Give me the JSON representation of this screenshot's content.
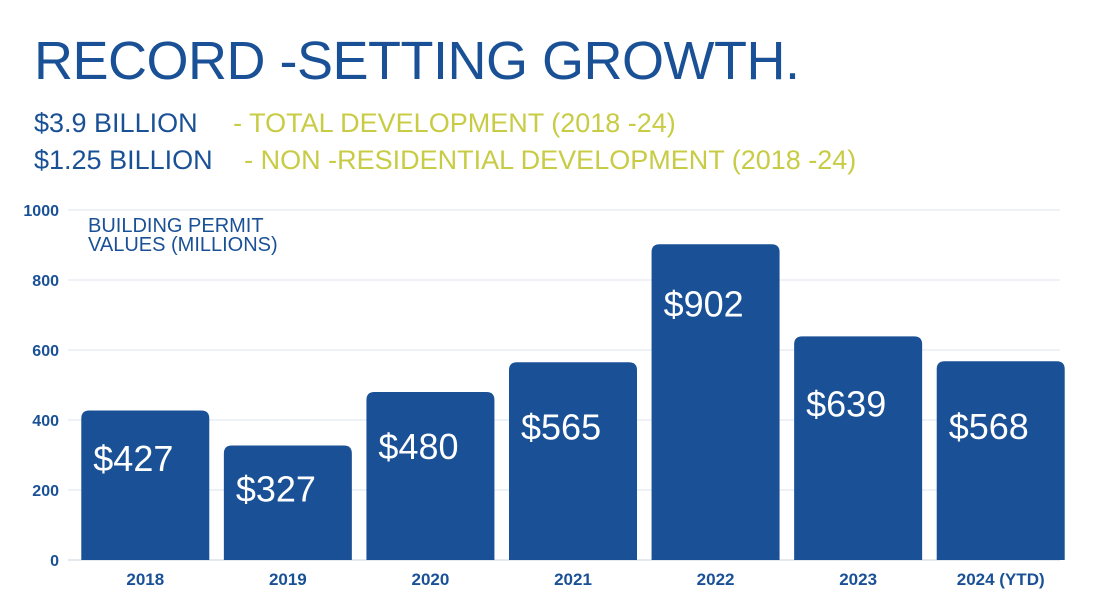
{
  "title": "RECORD -SETTING GROWTH.",
  "subtitles": [
    {
      "amount": "$3.9 BILLION",
      "desc": "- TOTAL DEVELOPMENT (2018     -24)"
    },
    {
      "amount": "$1.25 BILLION",
      "desc": "- NON -RESIDENTIAL DEVELOPMENT (2018      -24)"
    }
  ],
  "colors": {
    "bar": "#1a5196",
    "title": "#1a5196",
    "accent": "#c8cc45",
    "grid": "#dde6ef"
  },
  "chart_data": {
    "type": "bar",
    "ylabel_lines": [
      "BUILDING PERMIT",
      "VALUES (MILLIONS)"
    ],
    "categories": [
      "2018",
      "2019",
      "2020",
      "2021",
      "2022",
      "2023",
      "2024 (YTD)"
    ],
    "values": [
      427,
      327,
      480,
      565,
      902,
      639,
      568
    ],
    "data_labels": [
      "$427",
      "$327",
      "$480",
      "$565",
      "$902",
      "$639",
      "$568"
    ],
    "yticks": [
      0,
      200,
      400,
      600,
      800,
      1000
    ],
    "ylim": [
      0,
      1000
    ],
    "grid": true
  }
}
